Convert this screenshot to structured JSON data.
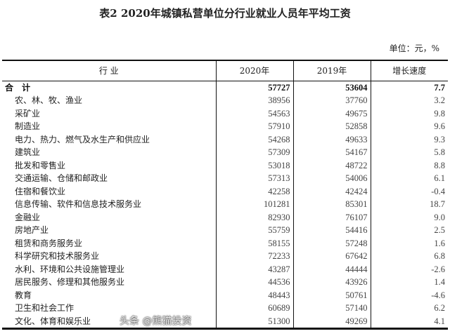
{
  "title": "表2  2020年城镇私营单位分行业就业人员年平均工资",
  "unit": "单位：元，%",
  "headers": [
    "行  业",
    "2020年",
    "2019年",
    "增长速度"
  ],
  "total": {
    "name": "合 计",
    "y2020": "57727",
    "y2019": "53604",
    "growth": "7.7"
  },
  "rows": [
    {
      "name": "农、林、牧、渔业",
      "y2020": "38956",
      "y2019": "37760",
      "growth": "3.2"
    },
    {
      "name": "采矿业",
      "y2020": "54563",
      "y2019": "49675",
      "growth": "9.8"
    },
    {
      "name": "制造业",
      "y2020": "57910",
      "y2019": "52858",
      "growth": "9.6"
    },
    {
      "name": "电力、热力、燃气及水生产和供应业",
      "y2020": "54268",
      "y2019": "49633",
      "growth": "9.3"
    },
    {
      "name": "建筑业",
      "y2020": "57309",
      "y2019": "54167",
      "growth": "5.8"
    },
    {
      "name": "批发和零售业",
      "y2020": "53018",
      "y2019": "48722",
      "growth": "8.8"
    },
    {
      "name": "交通运输、仓储和邮政业",
      "y2020": "57313",
      "y2019": "54006",
      "growth": "6.1"
    },
    {
      "name": "住宿和餐饮业",
      "y2020": "42258",
      "y2019": "42424",
      "growth": "-0.4"
    },
    {
      "name": "信息传输、软件和信息技术服务业",
      "y2020": "101281",
      "y2019": "85301",
      "growth": "18.7"
    },
    {
      "name": "金融业",
      "y2020": "82930",
      "y2019": "76107",
      "growth": "9.0"
    },
    {
      "name": "房地产业",
      "y2020": "55759",
      "y2019": "54416",
      "growth": "2.5"
    },
    {
      "name": "租赁和商务服务业",
      "y2020": "58155",
      "y2019": "57248",
      "growth": "1.6"
    },
    {
      "name": "科学研究和技术服务业",
      "y2020": "72233",
      "y2019": "67642",
      "growth": "6.8"
    },
    {
      "name": "水利、环境和公共设施管理业",
      "y2020": "43287",
      "y2019": "44444",
      "growth": "-2.6"
    },
    {
      "name": "居民服务、修理和其他服务业",
      "y2020": "44536",
      "y2019": "43926",
      "growth": "1.4"
    },
    {
      "name": "教育",
      "y2020": "48443",
      "y2019": "50761",
      "growth": "-4.6"
    },
    {
      "name": "卫生和社会工作",
      "y2020": "60689",
      "y2019": "57140",
      "growth": "6.2"
    },
    {
      "name": "文化、体育和娱乐业",
      "y2020": "51300",
      "y2019": "49269",
      "growth": "4.1"
    }
  ],
  "watermark": "头条 @熊猫投资"
}
